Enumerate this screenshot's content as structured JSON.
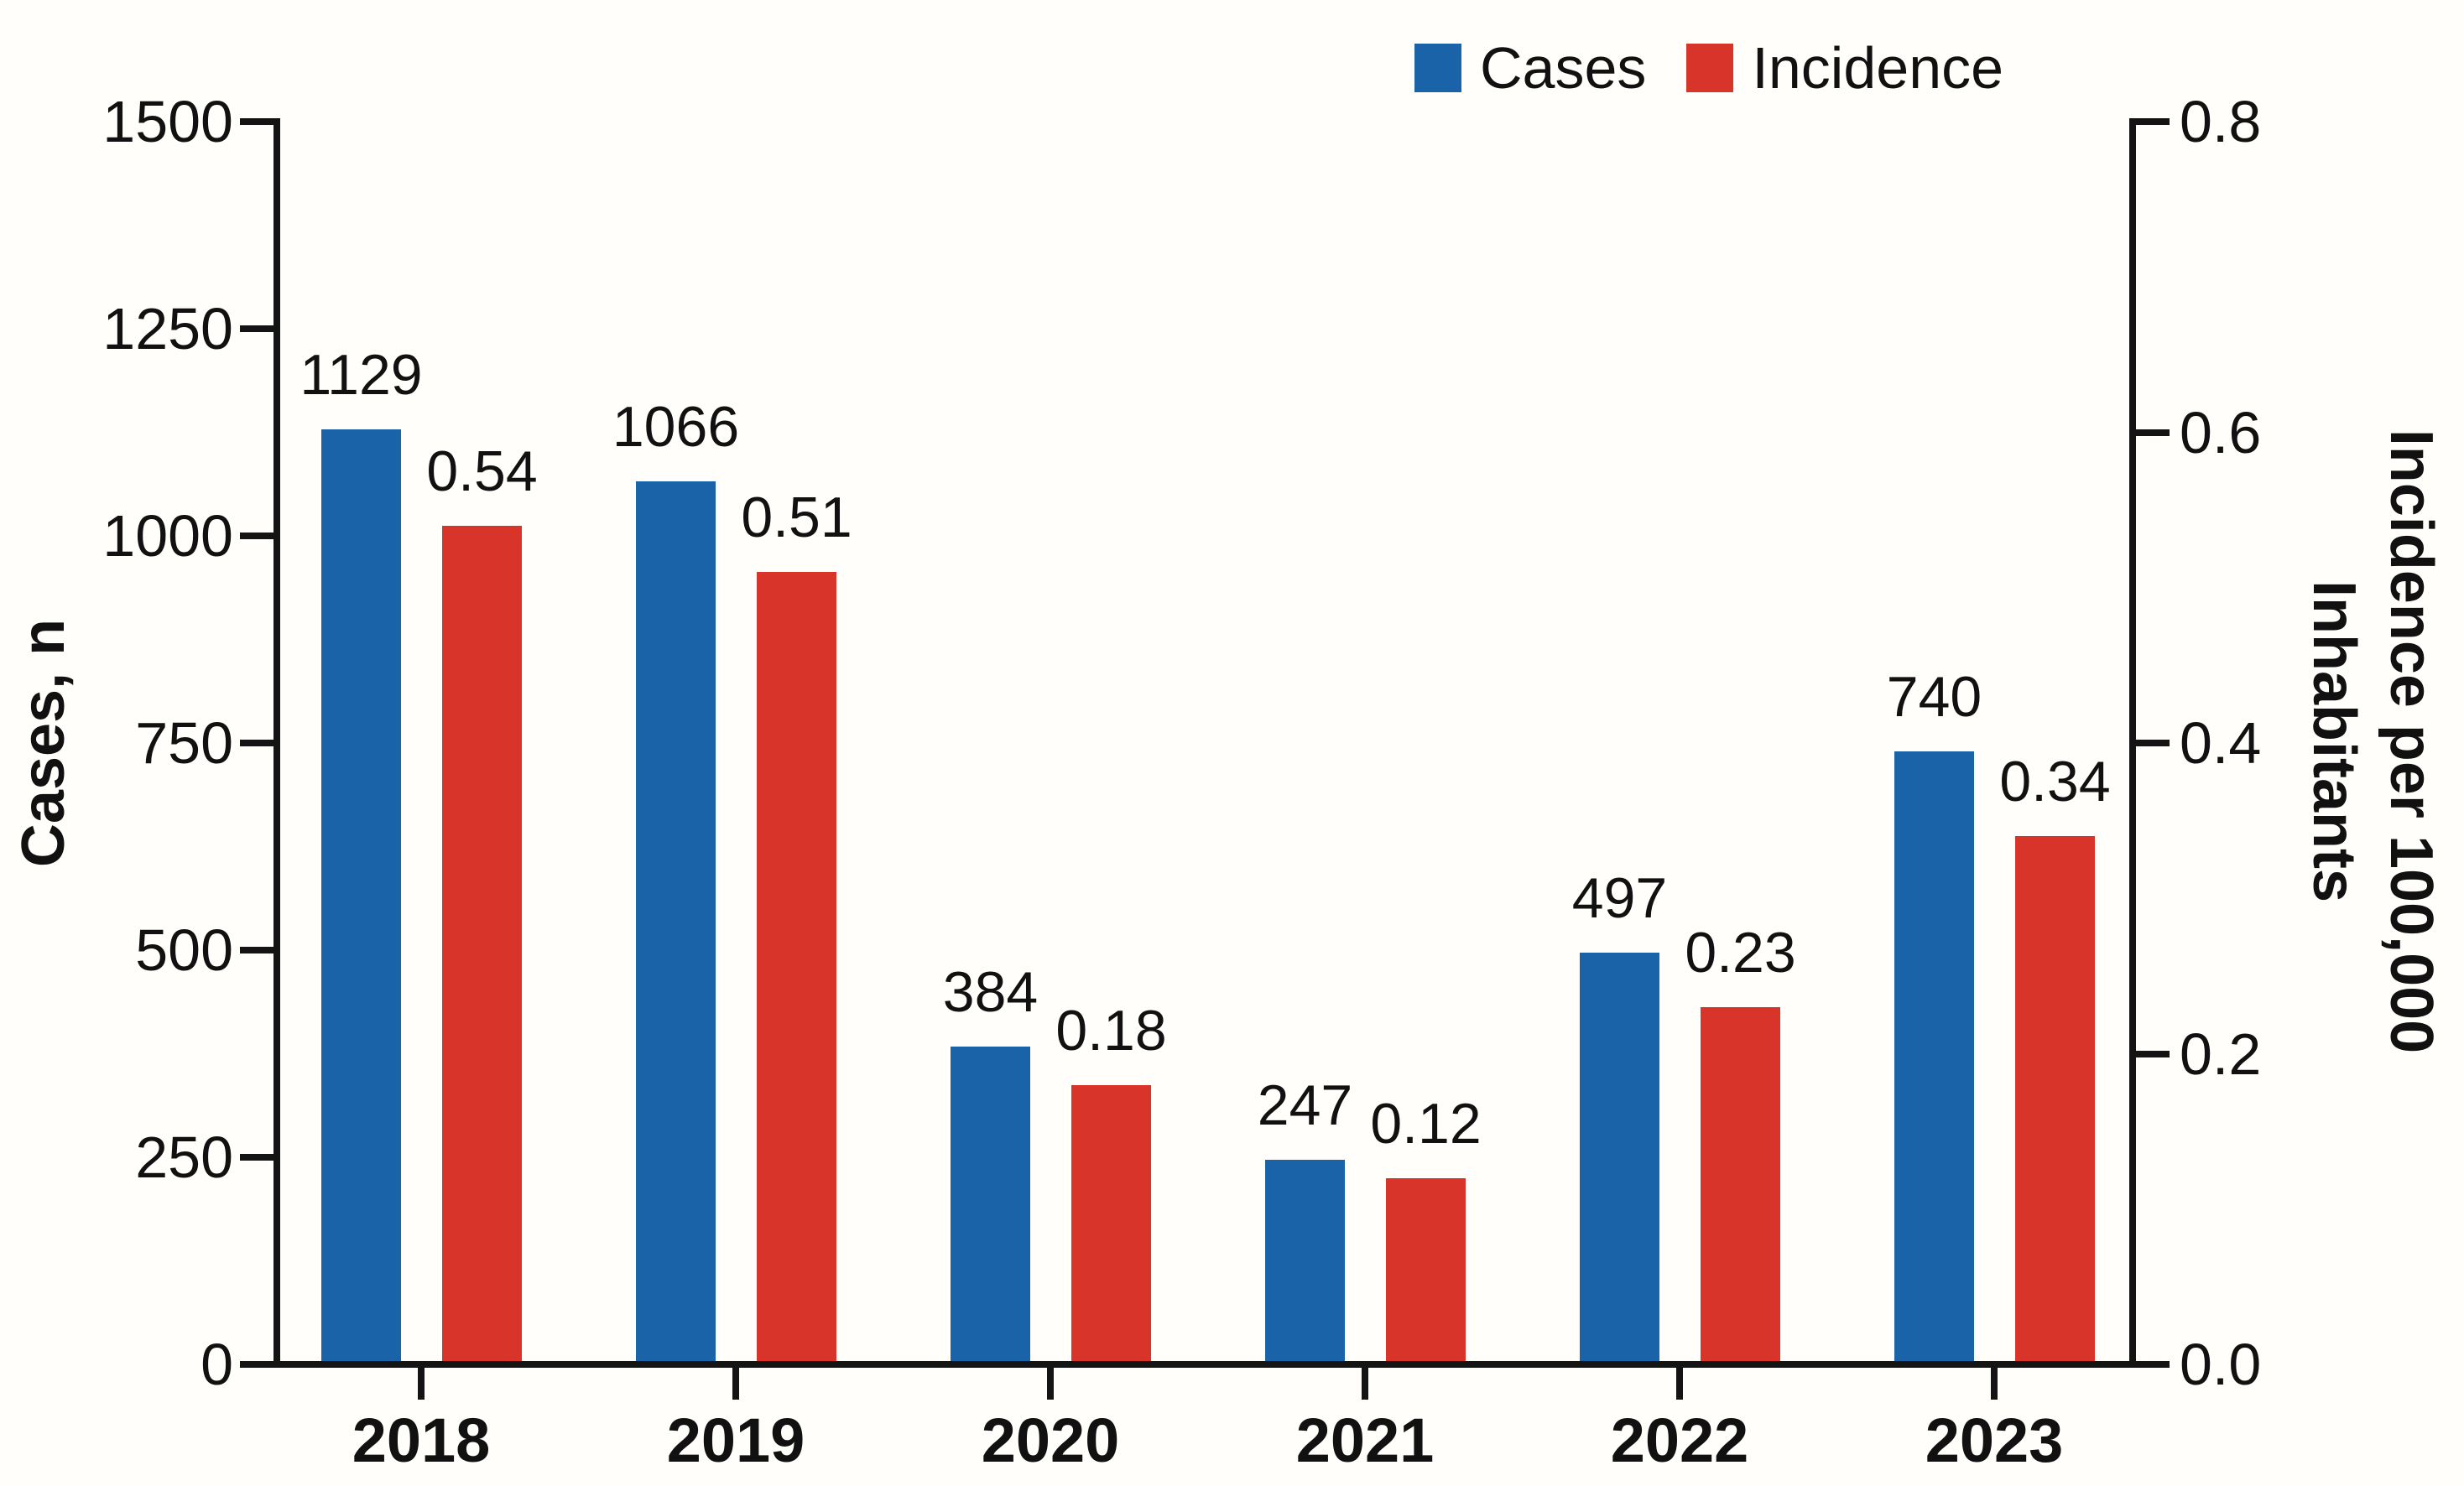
{
  "chart_data": {
    "type": "bar",
    "title": "",
    "categories": [
      "2018",
      "2019",
      "2020",
      "2021",
      "2022",
      "2023"
    ],
    "series": [
      {
        "name": "Cases",
        "axis": "left",
        "color": "#1a63a8",
        "values": [
          1129,
          1066,
          384,
          247,
          497,
          740
        ],
        "labels": [
          "1129",
          "1066",
          "384",
          "247",
          "497",
          "740"
        ]
      },
      {
        "name": "Incidence",
        "axis": "right",
        "color": "#d93429",
        "values": [
          0.54,
          0.51,
          0.18,
          0.12,
          0.23,
          0.34
        ],
        "labels": [
          "0.54",
          "0.51",
          "0.18",
          "0.12",
          "0.23",
          "0.34"
        ]
      }
    ],
    "left_axis": {
      "title": "Cases, n",
      "min": 0,
      "max": 1500,
      "tick_values": [
        1500,
        1250,
        1000,
        750,
        500,
        250,
        0
      ],
      "tick_labels": [
        "1500",
        "1250",
        "1000",
        "750",
        "500",
        "250",
        "0"
      ]
    },
    "right_axis": {
      "title_line1": "Incidence per 100,000",
      "title_line2": "Inhabitants",
      "min": 0,
      "max": 0.8,
      "tick_values": [
        0.8,
        0.6,
        0.4,
        0.2,
        0.0
      ],
      "tick_labels": [
        "0.8",
        "0.6",
        "0.4",
        "0.2",
        "0.0"
      ]
    },
    "legend": [
      {
        "label": "Cases",
        "color": "#1a63a8"
      },
      {
        "label": "Incidence",
        "color": "#d93429"
      }
    ],
    "grid": false,
    "legend_position": "top-right"
  },
  "colors": {
    "cases_blue": "#1a63a8",
    "incidence_red": "#d93429",
    "axis_black": "#141414",
    "background": "#fffefa"
  }
}
